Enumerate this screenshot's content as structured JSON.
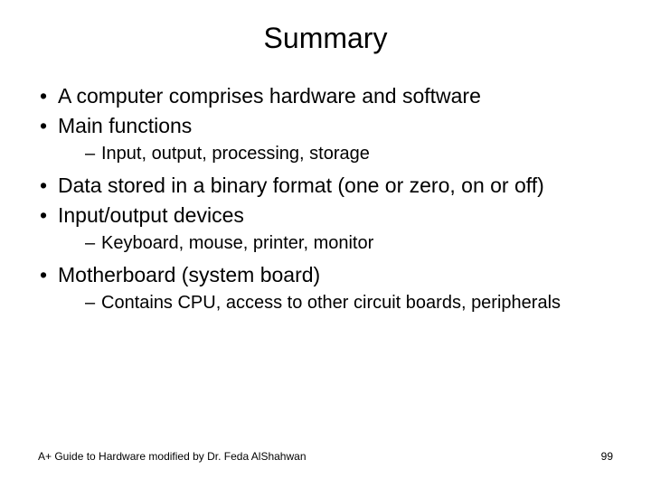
{
  "title": "Summary",
  "bullets": {
    "b0": "A computer comprises hardware and software",
    "b1": "Main functions",
    "b1_sub0": "Input, output, processing, storage",
    "b2": "Data stored in a binary format (one or zero, on or off)",
    "b3": "Input/output devices",
    "b3_sub0": "Keyboard, mouse, printer, monitor",
    "b4": "Motherboard (system board)",
    "b4_sub0": "Contains CPU, access to other circuit boards, peripherals"
  },
  "footer": {
    "left": "A+ Guide to Hardware modified by Dr. Feda AlShahwan",
    "page": "99"
  },
  "style": {
    "background_color": "#ffffff",
    "text_color": "#000000",
    "title_fontsize": 32,
    "level1_fontsize": 23,
    "level2_fontsize": 20,
    "footer_fontsize": 12,
    "font_family": "Arial"
  }
}
